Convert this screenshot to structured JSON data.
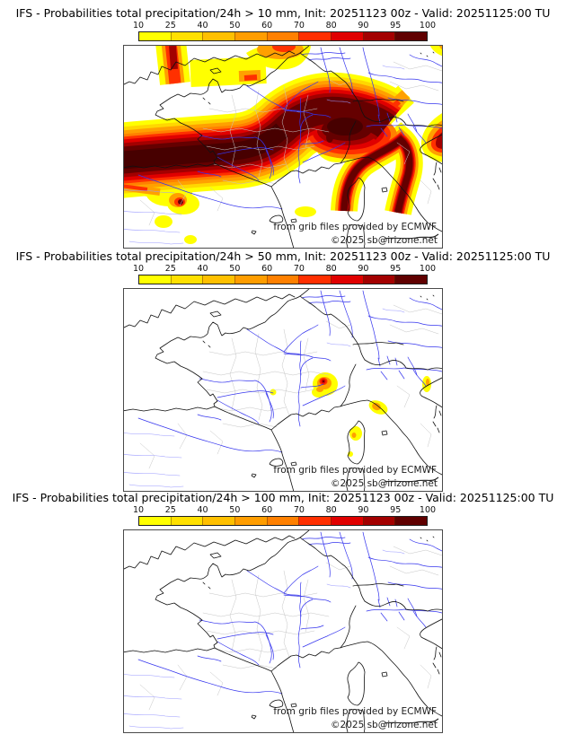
{
  "panels": [
    {
      "threshold_mm": 10,
      "title": "IFS - Probabilities total precipitation/24h > 10 mm, Init: 20251123 00z - Valid: 20251125:00 TU"
    },
    {
      "threshold_mm": 50,
      "title": "IFS - Probabilities total precipitation/24h > 50 mm, Init: 20251123 00z - Valid: 20251125:00 TU"
    },
    {
      "threshold_mm": 100,
      "title": "IFS - Probabilities total precipitation/24h > 100 mm, Init: 20251123 00z - Valid: 20251125:00 TU"
    }
  ],
  "colorbar": {
    "tick_labels": [
      "10",
      "25",
      "40",
      "50",
      "60",
      "70",
      "80",
      "90",
      "95",
      "100"
    ],
    "segment_colors": [
      "#ffff00",
      "#ffe000",
      "#ffc000",
      "#ff9d00",
      "#ff8000",
      "#ff2f00",
      "#e00000",
      "#a30000",
      "#600000"
    ],
    "unit": "%"
  },
  "attribution": {
    "line1": "from grib files provided by ECMWF",
    "line2": "©2025 sb@irizone.net"
  },
  "map_colors": {
    "coastline": "#111111",
    "department_border": "#c5c5c5",
    "river": "#3535ee",
    "river_light": "#9a9aff",
    "frame": "#4a4a4a",
    "land_sea": "#ffffff"
  }
}
